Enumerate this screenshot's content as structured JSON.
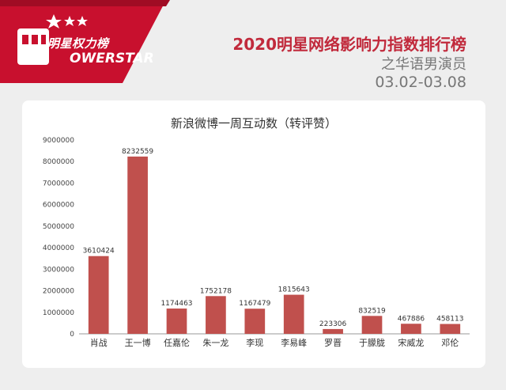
{
  "header": {
    "logo_cn": "明星权力榜",
    "logo_en": "OWERSTAR",
    "title": "2020明星网络影响力指数排行榜",
    "category": "之华语男演员",
    "date_range": "03.02-03.08"
  },
  "colors": {
    "bar": "#c0504d",
    "brand_red": "#c12a3c"
  },
  "chart_data": {
    "type": "bar",
    "title": "新浪微博一周互动数（转评赞）",
    "categories": [
      "肖战",
      "王一博",
      "任嘉伦",
      "朱一龙",
      "李现",
      "李易峰",
      "罗晋",
      "于朦胧",
      "宋威龙",
      "邓伦"
    ],
    "values": [
      3610424,
      8232559,
      1174463,
      1752178,
      1167479,
      1815643,
      223306,
      832519,
      467886,
      458113
    ],
    "value_labels": [
      "3610424",
      "8232559",
      "1174463",
      "1752178",
      "1167479",
      "1815643",
      "223306",
      "832519",
      "467886",
      "458113"
    ],
    "yticks": [
      "0",
      "1000000",
      "2000000",
      "3000000",
      "4000000",
      "5000000",
      "6000000",
      "7000000",
      "8000000",
      "9000000"
    ],
    "ylim": [
      0,
      9000000
    ],
    "xlabel": "",
    "ylabel": "",
    "grid": false,
    "legend": "none"
  }
}
